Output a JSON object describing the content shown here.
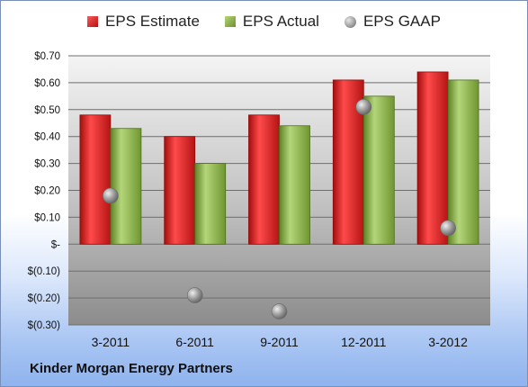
{
  "chart_data": {
    "type": "bar",
    "categories": [
      "3-2011",
      "6-2011",
      "9-2011",
      "12-2011",
      "3-2012"
    ],
    "series": [
      {
        "name": "EPS Estimate",
        "type": "bar",
        "values": [
          0.48,
          0.4,
          0.48,
          0.61,
          0.64
        ],
        "color": "#d42020"
      },
      {
        "name": "EPS Actual",
        "type": "bar",
        "values": [
          0.43,
          0.3,
          0.44,
          0.55,
          0.61
        ],
        "color": "#8db33f"
      },
      {
        "name": "EPS GAAP",
        "type": "scatter",
        "values": [
          0.18,
          -0.19,
          -0.25,
          0.51,
          0.06
        ],
        "color": "#a0a0a0"
      }
    ],
    "yticks": [
      "$0.70",
      "$0.60",
      "$0.50",
      "$0.40",
      "$0.30",
      "$0.20",
      "$0.10",
      "$-",
      "$(0.10)",
      "$(0.20)",
      "$(0.30)"
    ],
    "ylim": [
      -0.3,
      0.7
    ],
    "ystep": 0.1,
    "grid": true,
    "legend": "top"
  },
  "footer": {
    "company": "Kinder Morgan Energy Partners"
  }
}
